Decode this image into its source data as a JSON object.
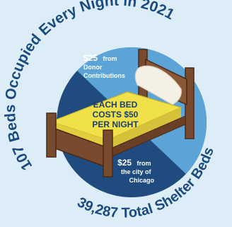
{
  "arc_top": {
    "text": "107 Beds Occupied Every Night in 2021"
  },
  "arc_bottom": {
    "text": "39,287 Total Shelter Beds"
  },
  "banner": {
    "line1": "EACH BED",
    "line2": "COSTS $50",
    "line3": "PER NIGHT"
  },
  "segments": {
    "donor": {
      "amount": "$25",
      "from": "from",
      "line2": "Donor",
      "line3": "Contributions"
    },
    "city": {
      "amount": "$25",
      "from": "from",
      "line2": "the city of",
      "line3": "Chicago"
    }
  },
  "colors": {
    "background": "#dcedf7",
    "pie_dark": "#1f4b7f",
    "pie_light": "#5ca3d8",
    "arc_text": "#1a4a7e",
    "mattress": "#f0e04a",
    "wood": "#7a4a2e",
    "pillow": "#f4f0e6"
  },
  "icons": {
    "bed": "bed-icon"
  }
}
